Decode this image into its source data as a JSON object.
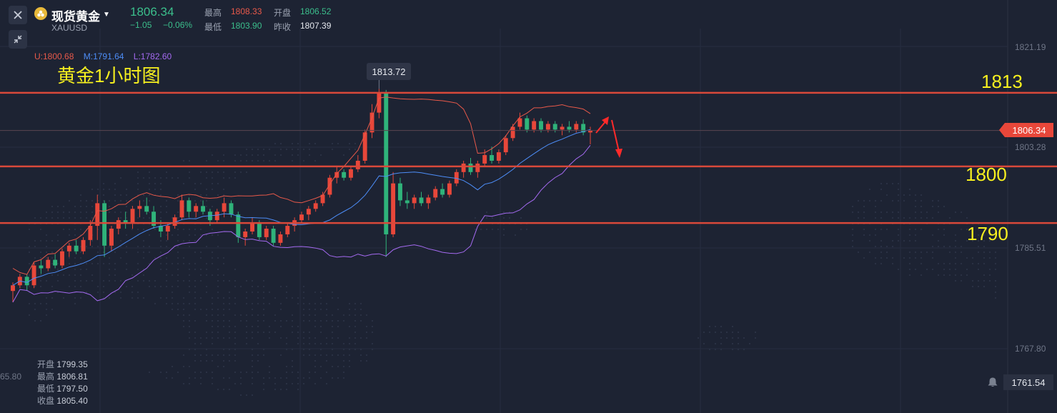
{
  "header": {
    "symbol_name": "现货黄金",
    "symbol_code": "XAUUSD",
    "last_price": "1806.34",
    "change": "−1.05",
    "change_pct": "−0.06%",
    "high_label": "最高",
    "high_value": "1808.33",
    "open_label": "开盘",
    "open_value": "1806.52",
    "low_label": "最低",
    "low_value": "1803.90",
    "prev_close_label": "昨收",
    "prev_close_value": "1807.39"
  },
  "bollinger": {
    "upper": "U:1800.68",
    "middle": "M:1791.64",
    "lower": "L:1782.60"
  },
  "chart_title": "黄金1小时图",
  "peak_label": "1813.72",
  "price_tag": "1806.34",
  "bottom_price": "1761.54",
  "left_axis_fragment": "65.80",
  "ohlc_box": {
    "open_label": "开盘",
    "open_value": "1799.35",
    "high_label": "最高",
    "high_value": "1806.81",
    "low_label": "最低",
    "low_value": "1797.50",
    "close_label": "收盘",
    "close_value": "1805.40"
  },
  "chart_data": {
    "type": "candlestick",
    "y_ticks": [
      "1821.19",
      "1803.28",
      "1785.51",
      "1767.80"
    ],
    "levels": [
      {
        "label": "1813",
        "price": 1813
      },
      {
        "label": "1800",
        "price": 1800
      },
      {
        "label": "1790",
        "price": 1790
      }
    ],
    "colors": {
      "up": "#e8473a",
      "down": "#2fb37a",
      "level": "#d9493a",
      "upper": "#e8594a",
      "middle": "#4d8df7",
      "lower": "#a46af0",
      "annotation": "#f7f01f"
    },
    "candles": [
      [
        1778.0,
        1779.5,
        1776.0,
        1779.0
      ],
      [
        1779.0,
        1781.0,
        1778.5,
        1780.5
      ],
      [
        1780.5,
        1781.0,
        1778.0,
        1779.0
      ],
      [
        1779.0,
        1783.0,
        1778.5,
        1782.5
      ],
      [
        1782.5,
        1783.5,
        1781.0,
        1782.0
      ],
      [
        1782.0,
        1784.0,
        1781.5,
        1783.5
      ],
      [
        1783.5,
        1784.5,
        1782.0,
        1782.5
      ],
      [
        1782.5,
        1785.5,
        1782.0,
        1785.0
      ],
      [
        1785.0,
        1786.5,
        1784.0,
        1786.0
      ],
      [
        1786.0,
        1787.0,
        1784.5,
        1785.0
      ],
      [
        1785.0,
        1787.5,
        1784.5,
        1787.0
      ],
      [
        1787.0,
        1790.5,
        1786.0,
        1789.5
      ],
      [
        1789.5,
        1795.0,
        1787.0,
        1793.5
      ],
      [
        1793.5,
        1794.0,
        1784.0,
        1786.0
      ],
      [
        1786.0,
        1789.5,
        1785.0,
        1789.0
      ],
      [
        1789.0,
        1791.0,
        1788.0,
        1790.5
      ],
      [
        1790.5,
        1792.0,
        1789.0,
        1790.0
      ],
      [
        1790.0,
        1793.0,
        1789.0,
        1792.5
      ],
      [
        1792.5,
        1794.0,
        1791.0,
        1793.0
      ],
      [
        1793.0,
        1794.5,
        1791.5,
        1792.0
      ],
      [
        1792.0,
        1793.0,
        1789.0,
        1789.5
      ],
      [
        1789.5,
        1790.5,
        1787.5,
        1788.5
      ],
      [
        1788.5,
        1790.0,
        1787.0,
        1789.5
      ],
      [
        1789.5,
        1791.5,
        1789.0,
        1791.0
      ],
      [
        1791.0,
        1795.0,
        1790.5,
        1794.0
      ],
      [
        1794.0,
        1794.5,
        1791.0,
        1792.0
      ],
      [
        1792.0,
        1793.5,
        1791.0,
        1793.0
      ],
      [
        1793.0,
        1794.0,
        1791.5,
        1792.0
      ],
      [
        1792.0,
        1792.5,
        1789.5,
        1790.5
      ],
      [
        1790.5,
        1792.5,
        1790.0,
        1792.0
      ],
      [
        1792.0,
        1794.5,
        1791.0,
        1793.5
      ],
      [
        1793.5,
        1794.0,
        1791.0,
        1791.5
      ],
      [
        1791.5,
        1792.0,
        1786.5,
        1787.5
      ],
      [
        1787.5,
        1789.0,
        1786.0,
        1788.5
      ],
      [
        1788.5,
        1791.0,
        1788.0,
        1790.0
      ],
      [
        1790.0,
        1790.5,
        1787.0,
        1787.5
      ],
      [
        1787.5,
        1789.5,
        1787.0,
        1789.0
      ],
      [
        1789.0,
        1789.5,
        1786.0,
        1786.5
      ],
      [
        1786.5,
        1788.5,
        1786.0,
        1788.0
      ],
      [
        1788.0,
        1790.0,
        1787.5,
        1789.5
      ],
      [
        1789.5,
        1791.0,
        1788.5,
        1790.5
      ],
      [
        1790.5,
        1792.0,
        1790.0,
        1791.5
      ],
      [
        1791.5,
        1793.0,
        1790.5,
        1792.5
      ],
      [
        1792.5,
        1794.0,
        1792.0,
        1793.5
      ],
      [
        1793.5,
        1795.5,
        1793.0,
        1795.0
      ],
      [
        1795.0,
        1798.5,
        1794.5,
        1798.0
      ],
      [
        1798.0,
        1800.0,
        1797.0,
        1799.0
      ],
      [
        1799.0,
        1799.5,
        1797.5,
        1798.0
      ],
      [
        1798.0,
        1800.0,
        1797.5,
        1799.5
      ],
      [
        1799.5,
        1802.0,
        1799.0,
        1801.0
      ],
      [
        1801.0,
        1806.5,
        1800.5,
        1806.0
      ],
      [
        1806.0,
        1811.0,
        1805.0,
        1809.5
      ],
      [
        1809.5,
        1813.7,
        1808.5,
        1813.0
      ],
      [
        1813.0,
        1813.5,
        1784.0,
        1788.0
      ],
      [
        1788.0,
        1799.0,
        1787.5,
        1797.0
      ],
      [
        1797.0,
        1798.0,
        1793.0,
        1794.0
      ],
      [
        1794.0,
        1795.5,
        1792.5,
        1793.5
      ],
      [
        1793.5,
        1795.0,
        1792.5,
        1794.5
      ],
      [
        1794.5,
        1795.5,
        1793.0,
        1793.5
      ],
      [
        1793.5,
        1795.0,
        1792.5,
        1794.5
      ],
      [
        1794.5,
        1796.5,
        1794.0,
        1796.0
      ],
      [
        1796.0,
        1797.0,
        1794.5,
        1795.0
      ],
      [
        1795.0,
        1797.5,
        1794.5,
        1797.0
      ],
      [
        1797.0,
        1799.5,
        1796.5,
        1799.0
      ],
      [
        1799.0,
        1801.0,
        1798.0,
        1800.5
      ],
      [
        1800.5,
        1801.5,
        1798.5,
        1799.0
      ],
      [
        1799.0,
        1801.0,
        1798.0,
        1800.5
      ],
      [
        1800.5,
        1803.0,
        1800.0,
        1802.0
      ],
      [
        1802.0,
        1803.5,
        1800.5,
        1801.0
      ],
      [
        1801.0,
        1803.0,
        1800.5,
        1802.5
      ],
      [
        1802.5,
        1805.5,
        1802.0,
        1805.0
      ],
      [
        1805.0,
        1807.5,
        1804.5,
        1807.0
      ],
      [
        1807.0,
        1809.5,
        1806.5,
        1808.5
      ],
      [
        1808.5,
        1809.0,
        1806.0,
        1806.5
      ],
      [
        1806.5,
        1808.5,
        1806.0,
        1808.0
      ],
      [
        1808.0,
        1808.5,
        1806.0,
        1806.5
      ],
      [
        1806.5,
        1808.0,
        1806.0,
        1807.5
      ],
      [
        1807.5,
        1808.0,
        1806.0,
        1806.5
      ],
      [
        1806.5,
        1807.5,
        1805.5,
        1807.0
      ],
      [
        1807.0,
        1808.0,
        1806.0,
        1806.5
      ],
      [
        1806.5,
        1808.0,
        1806.0,
        1807.5
      ],
      [
        1807.5,
        1808.3,
        1805.5,
        1806.0
      ],
      [
        1806.0,
        1807.0,
        1803.9,
        1806.3
      ]
    ]
  }
}
